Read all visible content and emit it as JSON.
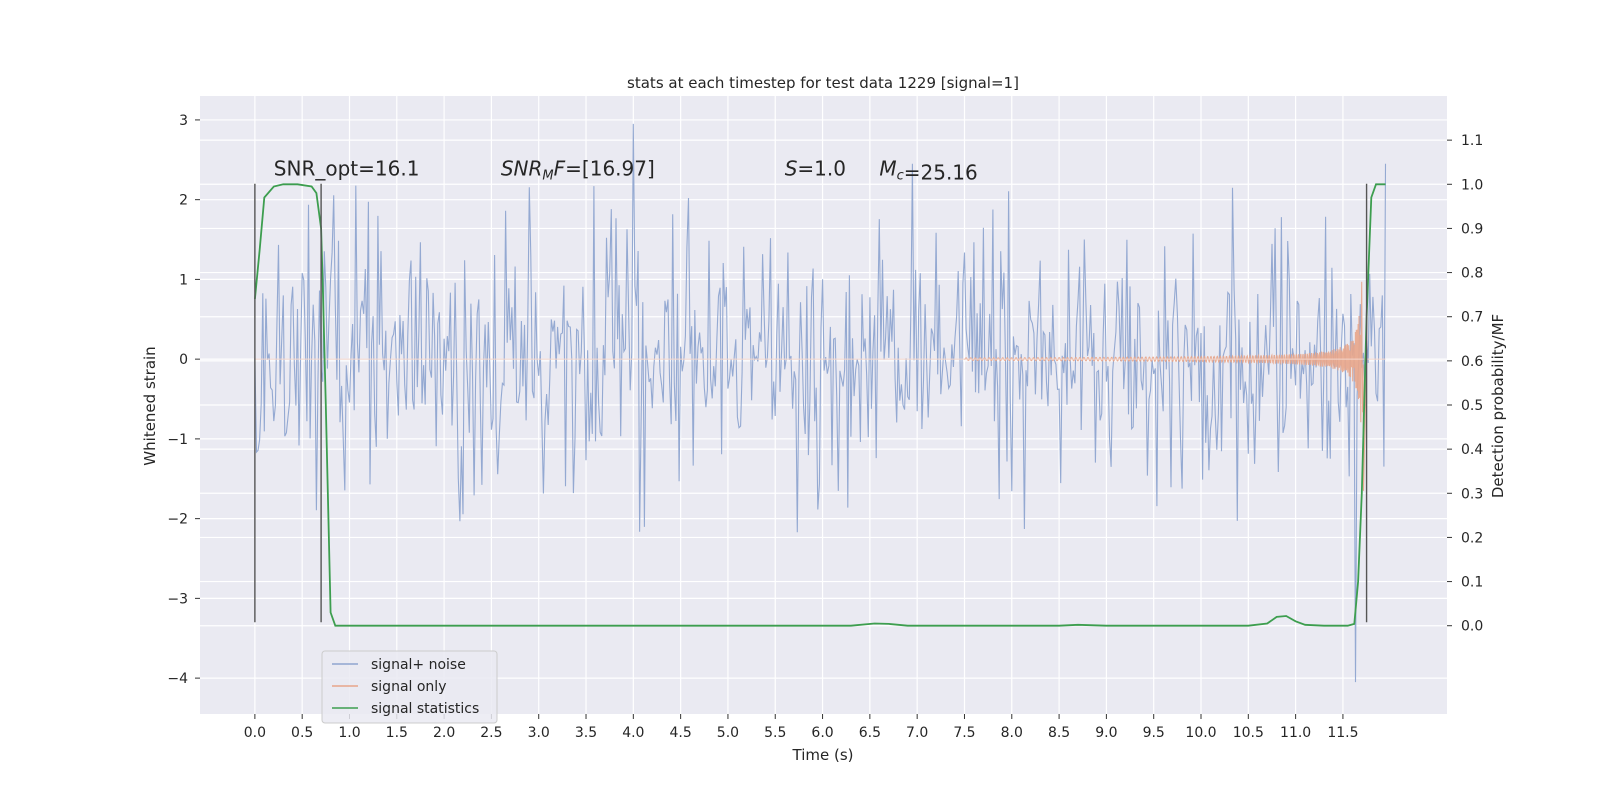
{
  "chart_data": {
    "type": "line",
    "title": "stats at each timestep for test data 1229 [signal=1]",
    "xlabel": "Time (s)",
    "ylabel": "Whitened strain",
    "ylabel_right": "Detection probability/MF",
    "xlim": [
      -0.58,
      12.6
    ],
    "ylim": [
      -4.45,
      3.3
    ],
    "ylim_right": [
      -0.2,
      1.2
    ],
    "x_ticks": [
      0.0,
      0.5,
      1.0,
      1.5,
      2.0,
      2.5,
      3.0,
      3.5,
      4.0,
      4.5,
      5.0,
      5.5,
      6.0,
      6.5,
      7.0,
      7.5,
      8.0,
      8.5,
      9.0,
      9.5,
      10.0,
      10.5,
      11.0,
      11.5
    ],
    "x_tick_labels": [
      "0.0",
      "0.5",
      "1.0",
      "1.5",
      "2.0",
      "2.5",
      "3.0",
      "3.5",
      "4.0",
      "4.5",
      "5.0",
      "5.5",
      "6.0",
      "6.5",
      "7.0",
      "7.5",
      "8.0",
      "8.5",
      "9.0",
      "9.5",
      "10.0",
      "10.5",
      "11.0",
      "11.5"
    ],
    "y_ticks": [
      3,
      2,
      1,
      0,
      -1,
      -2,
      -3,
      -4
    ],
    "y_tick_labels": [
      "3",
      "2",
      "1",
      "0",
      "−1",
      "−2",
      "−3",
      "−4"
    ],
    "y_right_ticks": [
      1.1,
      1.0,
      0.9,
      0.8,
      0.7,
      0.6,
      0.5,
      0.4,
      0.3,
      0.2,
      0.1,
      0.0
    ],
    "y_right_tick_labels": [
      "1.1",
      "1.0",
      "0.9",
      "0.8",
      "0.7",
      "0.6",
      "0.5",
      "0.4",
      "0.3",
      "0.2",
      "0.1",
      "0.0"
    ],
    "grid": true,
    "legend_position": "lower-left",
    "annotations": [
      {
        "text": "SNR_opt=16.1",
        "x": 0.2,
        "y": 2.3
      },
      {
        "text": "SNR_MF=[16.97]",
        "x": 2.6,
        "y": 2.3,
        "math": true
      },
      {
        "text": "S=1.0",
        "x": 5.6,
        "y": 2.3,
        "math": true
      },
      {
        "text": "M_c=25.16",
        "x": 6.6,
        "y": 2.3,
        "math": true
      }
    ],
    "vertical_markers": [
      0.0,
      0.7,
      11.75
    ],
    "vertical_marker_range": [
      -3.3,
      2.2
    ],
    "series": [
      {
        "name": "signal+ noise",
        "color": "#8fa5d0",
        "axis": "left",
        "style": "dense-noise",
        "x_range": [
          0.0,
          11.95
        ],
        "points_per_second": 60,
        "band_amplitude": 1.15,
        "peak_max": 2.95,
        "trough_min": -4.05,
        "peaks": [
          {
            "x": 4.0,
            "y": 2.95
          },
          {
            "x": 11.64,
            "y": -4.05
          },
          {
            "x": 6.95,
            "y": 2.45
          },
          {
            "x": 11.95,
            "y": 2.45
          }
        ]
      },
      {
        "name": "signal only",
        "color": "#e8a58a",
        "axis": "left",
        "style": "chirp",
        "x_start": 7.5,
        "x_peak": 11.7,
        "peak_value": 2.5,
        "x_end": 11.75
      },
      {
        "name": "signal statistics",
        "color": "#3d9e4f",
        "axis": "right",
        "style": "line",
        "x": [
          0.0,
          0.05,
          0.1,
          0.2,
          0.3,
          0.45,
          0.6,
          0.65,
          0.7,
          0.72,
          0.75,
          0.8,
          0.85,
          0.9,
          1.5,
          3.0,
          4.5,
          5.5,
          6.0,
          6.3,
          6.55,
          6.7,
          6.9,
          7.5,
          8.5,
          8.7,
          9.0,
          10.0,
          10.5,
          10.7,
          10.8,
          10.9,
          11.0,
          11.1,
          11.3,
          11.55,
          11.62,
          11.66,
          11.7,
          11.75,
          11.8,
          11.85,
          11.9,
          11.95
        ],
        "y": [
          0.74,
          0.85,
          0.97,
          0.995,
          1.0,
          1.0,
          0.995,
          0.98,
          0.9,
          0.75,
          0.5,
          0.03,
          0.0,
          0.0,
          0.0,
          0.0,
          0.0,
          0.0,
          0.0,
          0.0,
          0.005,
          0.004,
          0.0,
          0.0,
          0.0,
          0.002,
          0.0,
          0.0,
          0.0,
          0.005,
          0.02,
          0.022,
          0.01,
          0.002,
          0.0,
          0.0,
          0.004,
          0.1,
          0.3,
          0.7,
          0.97,
          1.0,
          1.0,
          1.0
        ]
      }
    ]
  }
}
